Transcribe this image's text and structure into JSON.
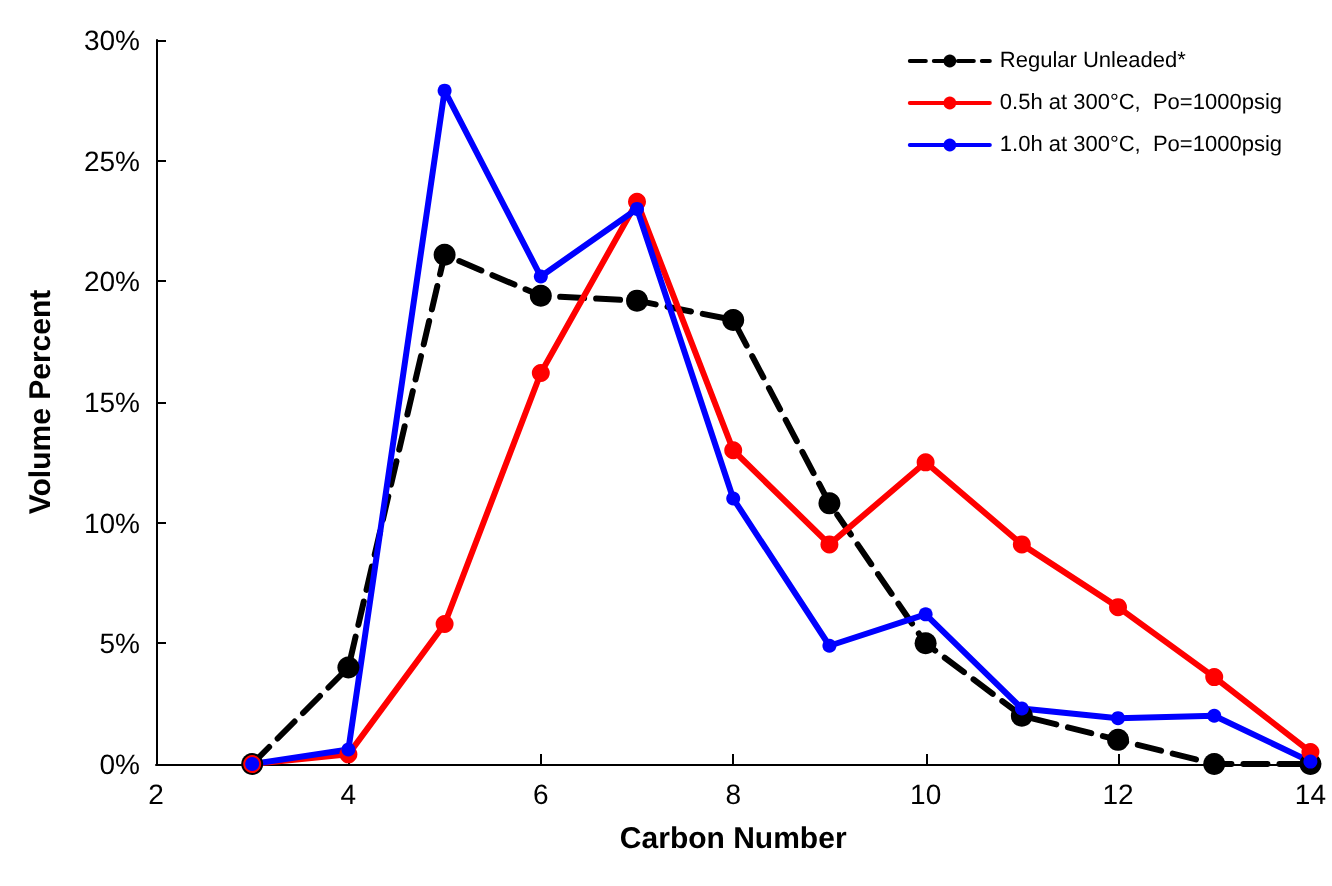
{
  "chart_data": {
    "type": "line",
    "xlabel": "Carbon Number",
    "ylabel": "Volume Percent",
    "x": [
      3,
      4,
      5,
      6,
      7,
      8,
      9,
      10,
      11,
      12,
      13,
      14
    ],
    "xlim": [
      2,
      14
    ],
    "xticks": [
      2,
      4,
      6,
      8,
      10,
      12,
      14
    ],
    "ylim": [
      0,
      30
    ],
    "yticks": [
      {
        "value": 0,
        "label": "0%"
      },
      {
        "value": 5,
        "label": "5%"
      },
      {
        "value": 10,
        "label": "10%"
      },
      {
        "value": 15,
        "label": "15%"
      },
      {
        "value": 20,
        "label": "20%"
      },
      {
        "value": 25,
        "label": "25%"
      },
      {
        "value": 30,
        "label": "30%"
      }
    ],
    "grid": false,
    "legend": "top right",
    "marker": "circle",
    "series": [
      {
        "name": "Regular Unleaded*",
        "color": "#000000",
        "line_style": "dashed",
        "values": [
          0,
          4,
          21.1,
          19.4,
          19.2,
          18.4,
          10.8,
          5,
          2,
          1,
          0,
          0
        ]
      },
      {
        "name": "0.5h at 300°C,  Po=1000psig",
        "color": "#ff0000",
        "line_style": "solid",
        "values": [
          0,
          0.4,
          5.8,
          16.2,
          23.3,
          13,
          9.1,
          12.5,
          9.1,
          6.5,
          3.6,
          0.5
        ]
      },
      {
        "name": "1.0h at 300°C,  Po=1000psig",
        "color": "#0000ff",
        "line_style": "solid",
        "values": [
          0,
          0.6,
          27.9,
          20.2,
          23,
          11,
          4.9,
          6.2,
          2.3,
          1.9,
          2,
          0.1
        ]
      }
    ]
  }
}
